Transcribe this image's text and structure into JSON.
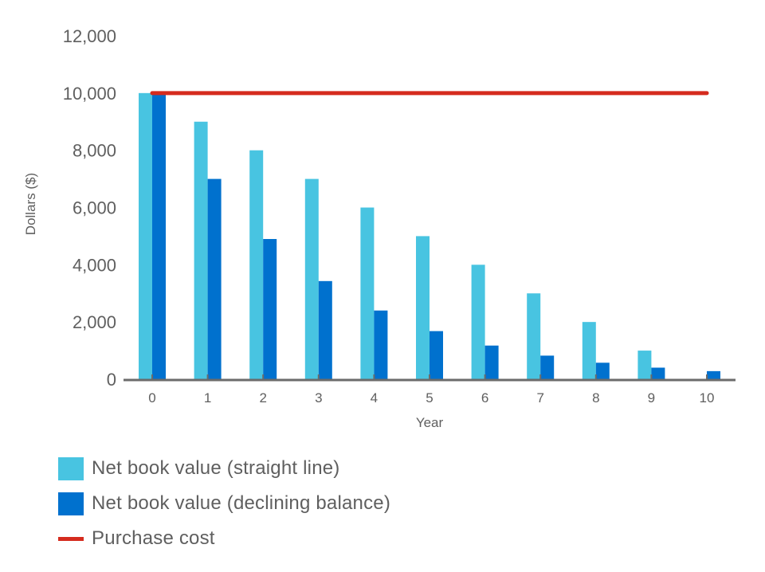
{
  "chart_data": {
    "type": "bar",
    "title": "",
    "xlabel": "Year",
    "ylabel": "Dollars ($)",
    "ylim": [
      0,
      12000
    ],
    "yticks": [
      0,
      2000,
      4000,
      6000,
      8000,
      10000,
      12000
    ],
    "ytick_labels": [
      "0",
      "2,000",
      "4,000",
      "6,000",
      "8,000",
      "10,000",
      "12,000"
    ],
    "categories": [
      "0",
      "1",
      "2",
      "3",
      "4",
      "5",
      "6",
      "7",
      "8",
      "9",
      "10"
    ],
    "grid": false,
    "legend_position": "bottom-left",
    "series": [
      {
        "name": "Net book value (straight line)",
        "type": "bar",
        "color": "#48c4e1",
        "values": [
          10000,
          9000,
          8000,
          7000,
          6000,
          5000,
          4000,
          3000,
          2000,
          1000,
          0
        ]
      },
      {
        "name": "Net book value (declining balance)",
        "type": "bar",
        "color": "#0071ce",
        "values": [
          10000,
          7000,
          4900,
          3430,
          2401,
          1681,
          1176,
          824,
          576,
          404,
          282
        ]
      },
      {
        "name": "Purchase cost",
        "type": "line",
        "color": "#d52b1e",
        "values": [
          10000,
          10000,
          10000,
          10000,
          10000,
          10000,
          10000,
          10000,
          10000,
          10000,
          10000
        ]
      }
    ]
  },
  "legend": {
    "items": [
      {
        "label": "Net book value (straight line)",
        "color": "#48c4e1",
        "kind": "swatch"
      },
      {
        "label": "Net book value (declining balance)",
        "color": "#0071ce",
        "kind": "swatch"
      },
      {
        "label": "Purchase cost",
        "color": "#d52b1e",
        "kind": "line"
      }
    ]
  },
  "colors": {
    "axis": "#6b6b6b",
    "text": "#5f5f5f"
  }
}
